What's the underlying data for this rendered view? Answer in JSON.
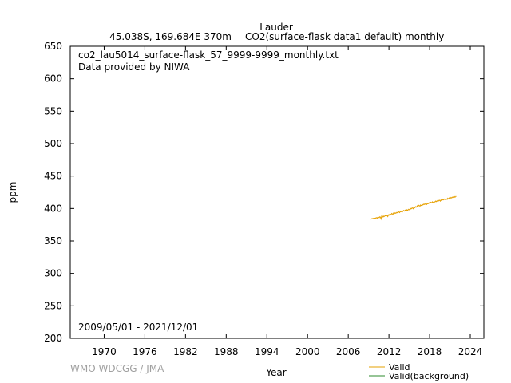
{
  "chart_data": {
    "type": "line",
    "title": "Lauder",
    "subtitle_location": "45.038S, 169.684E 370m",
    "subtitle_series": "CO2(surface-flask data1 default) monthly",
    "file_label": "co2_lau5014_surface-flask_57_9999-9999_monthly.txt",
    "provider_label": "Data provided by NIWA",
    "period_label": "2009/05/01 - 2021/12/01",
    "xlabel": "Year",
    "ylabel": "ppm",
    "xlim": [
      1965,
      2026
    ],
    "ylim": [
      200,
      650
    ],
    "xticks": [
      1970,
      1976,
      1982,
      1988,
      1994,
      2000,
      2006,
      2012,
      2018,
      2024
    ],
    "yticks": [
      200,
      250,
      300,
      350,
      400,
      450,
      500,
      550,
      600,
      650
    ],
    "grid": false,
    "legend_position": "bottom-right",
    "series": [
      {
        "name": "Valid",
        "color": "#e6a000",
        "x": [
          2009.33,
          2009.42,
          2009.5,
          2009.58,
          2009.67,
          2009.75,
          2009.83,
          2009.92,
          2010.0,
          2010.08,
          2010.17,
          2010.25,
          2010.33,
          2010.42,
          2010.5,
          2010.58,
          2010.67,
          2010.75,
          2010.83,
          2010.92,
          2011.0,
          2011.08,
          2011.17,
          2011.25,
          2011.33,
          2011.42,
          2011.5,
          2011.58,
          2011.67,
          2011.75,
          2011.83,
          2011.92,
          2012.0,
          2012.08,
          2012.17,
          2012.25,
          2012.33,
          2012.42,
          2012.5,
          2012.58,
          2012.67,
          2012.75,
          2012.83,
          2012.92,
          2013.0,
          2013.08,
          2013.17,
          2013.25,
          2013.33,
          2013.42,
          2013.5,
          2013.58,
          2013.67,
          2013.75,
          2013.83,
          2013.92,
          2014.0,
          2014.08,
          2014.17,
          2014.25,
          2014.33,
          2014.42,
          2014.5,
          2014.58,
          2014.67,
          2014.75,
          2014.83,
          2014.92,
          2015.0,
          2015.08,
          2015.17,
          2015.25,
          2015.33,
          2015.42,
          2015.5,
          2015.58,
          2015.67,
          2015.75,
          2015.83,
          2015.92,
          2016.0,
          2016.08,
          2016.17,
          2016.25,
          2016.33,
          2016.42,
          2016.5,
          2016.58,
          2016.67,
          2016.75,
          2016.83,
          2016.92,
          2017.0,
          2017.08,
          2017.17,
          2017.25,
          2017.33,
          2017.42,
          2017.5,
          2017.58,
          2017.67,
          2017.75,
          2017.83,
          2017.92,
          2018.0,
          2018.08,
          2018.17,
          2018.25,
          2018.33,
          2018.42,
          2018.5,
          2018.58,
          2018.67,
          2018.75,
          2018.83,
          2018.92,
          2019.0,
          2019.08,
          2019.17,
          2019.25,
          2019.33,
          2019.42,
          2019.5,
          2019.58,
          2019.67,
          2019.75,
          2019.83,
          2019.92,
          2020.0,
          2020.08,
          2020.17,
          2020.25,
          2020.33,
          2020.42,
          2020.5,
          2020.58,
          2020.67,
          2020.75,
          2020.83,
          2020.92,
          2021.0,
          2021.08,
          2021.17,
          2021.25,
          2021.33,
          2021.42,
          2021.5,
          2021.58,
          2021.67,
          2021.75,
          2021.83,
          2021.92
        ],
        "y": [
          383.4,
          383.8,
          384.5,
          384.2,
          384.8,
          383.9,
          384.6,
          385.1,
          384.3,
          385.6,
          385.9,
          384.8,
          386.2,
          387.0,
          386.1,
          385.8,
          387.3,
          386.5,
          383.9,
          387.9,
          386.4,
          386.8,
          388.5,
          387.2,
          387.9,
          388.6,
          389.0,
          388.1,
          389.4,
          388.7,
          387.6,
          390.3,
          389.5,
          390.8,
          391.6,
          390.2,
          391.0,
          392.4,
          391.7,
          390.6,
          392.9,
          391.8,
          392.3,
          393.5,
          392.6,
          393.1,
          394.2,
          393.4,
          394.0,
          395.1,
          394.3,
          393.7,
          395.6,
          394.8,
          395.2,
          396.4,
          395.0,
          396.2,
          397.1,
          396.0,
          396.8,
          397.6,
          396.9,
          396.3,
          398.2,
          397.1,
          397.8,
          398.9,
          398.0,
          398.6,
          400.2,
          399.1,
          399.8,
          401.0,
          400.4,
          399.5,
          401.7,
          400.8,
          401.3,
          402.9,
          401.8,
          402.6,
          404.1,
          403.1,
          403.7,
          405.0,
          404.2,
          403.4,
          405.4,
          404.5,
          405.0,
          406.4,
          405.3,
          405.9,
          407.0,
          406.1,
          406.6,
          407.7,
          406.9,
          406.2,
          408.1,
          407.2,
          407.7,
          408.9,
          407.9,
          408.5,
          409.6,
          408.7,
          409.2,
          410.4,
          409.5,
          408.9,
          410.8,
          409.9,
          410.4,
          411.6,
          410.5,
          411.1,
          412.2,
          411.2,
          411.7,
          412.9,
          412.0,
          411.3,
          413.3,
          412.4,
          412.9,
          414.0,
          413.0,
          413.6,
          414.6,
          413.7,
          414.2,
          415.4,
          414.5,
          413.8,
          415.8,
          414.9,
          415.4,
          416.5,
          415.4,
          416.0,
          417.1,
          416.2,
          416.8,
          417.9,
          417.0,
          416.4,
          418.3,
          417.4,
          417.9,
          419.0
        ]
      },
      {
        "name": "Valid(background)",
        "color": "#2e8b2e",
        "x": [],
        "y": []
      }
    ]
  },
  "footer": {
    "watermark": "WMO WDCGG / JMA"
  }
}
